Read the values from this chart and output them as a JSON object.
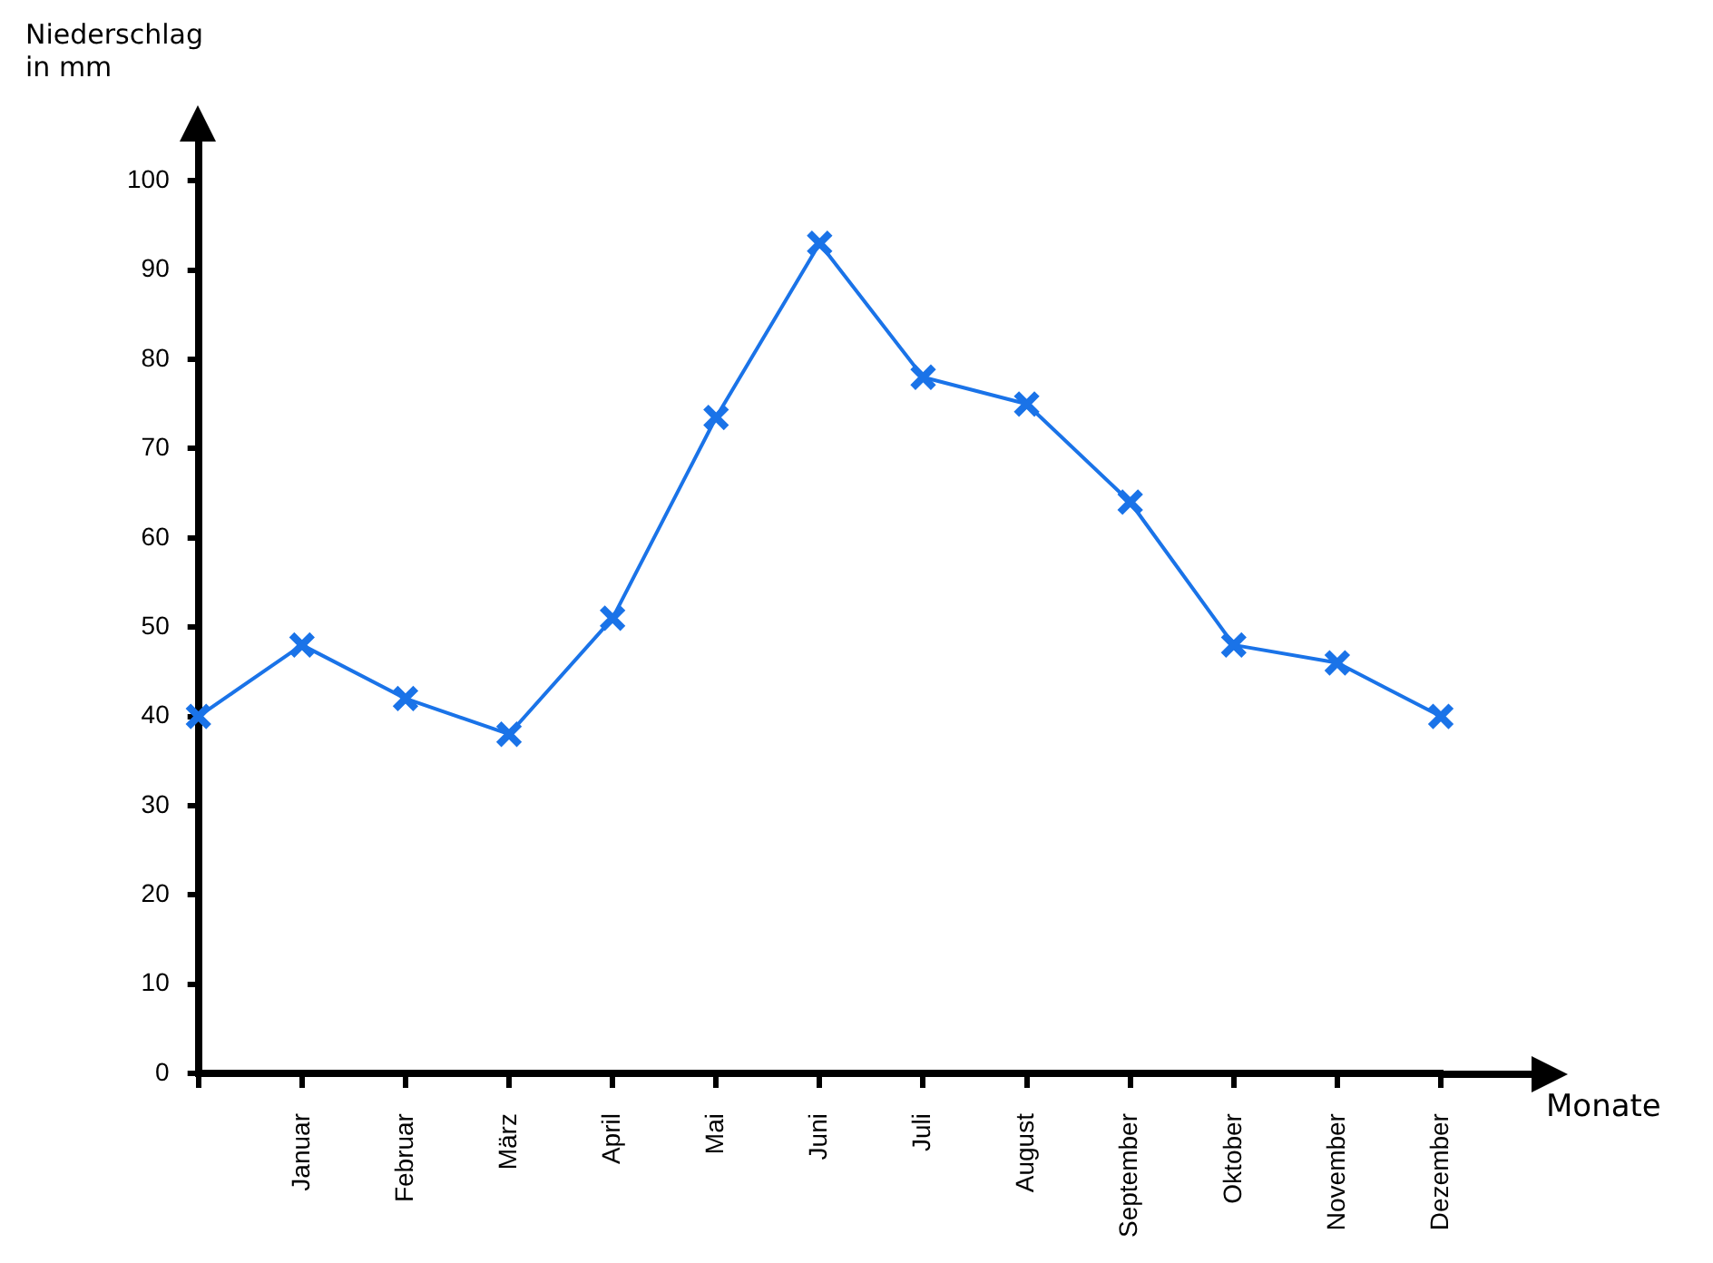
{
  "chart_data": {
    "type": "line",
    "ylabel": "Niederschlag\nin mm",
    "xlabel": "Monate",
    "categories": [
      null,
      "Januar",
      "Februar",
      "März",
      "April",
      "Mai",
      "Juni",
      "Juli",
      "August",
      "September",
      "Oktober",
      "November",
      "Dezember"
    ],
    "series": [
      {
        "color": "#1a73e8",
        "values": [
          40,
          48,
          42,
          38,
          51,
          73.5,
          93,
          78,
          75,
          64,
          48,
          46,
          40
        ]
      }
    ],
    "ylim": [
      0,
      104
    ],
    "yticks": [
      0,
      10,
      20,
      30,
      40,
      50,
      60,
      70,
      80,
      90,
      100
    ],
    "grid": false,
    "legend": false,
    "marker": "cross",
    "line_style": "solid"
  }
}
